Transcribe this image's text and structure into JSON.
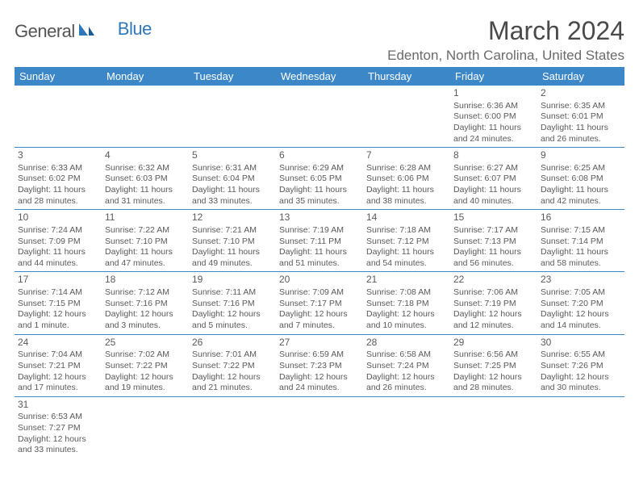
{
  "logo": {
    "gen": "General",
    "blue": "Blue"
  },
  "title": "March 2024",
  "location": "Edenton, North Carolina, United States",
  "day_headers": [
    "Sunday",
    "Monday",
    "Tuesday",
    "Wednesday",
    "Thursday",
    "Friday",
    "Saturday"
  ],
  "colors": {
    "header_bg": "#3b87c8",
    "header_fg": "#ffffff",
    "border": "#3b87c8",
    "logo_blue": "#2f77bb",
    "text": "#4a4a4a"
  },
  "weeks": [
    [
      null,
      null,
      null,
      null,
      null,
      {
        "n": "1",
        "sr": "Sunrise: 6:36 AM",
        "ss": "Sunset: 6:00 PM",
        "d1": "Daylight: 11 hours",
        "d2": "and 24 minutes."
      },
      {
        "n": "2",
        "sr": "Sunrise: 6:35 AM",
        "ss": "Sunset: 6:01 PM",
        "d1": "Daylight: 11 hours",
        "d2": "and 26 minutes."
      }
    ],
    [
      {
        "n": "3",
        "sr": "Sunrise: 6:33 AM",
        "ss": "Sunset: 6:02 PM",
        "d1": "Daylight: 11 hours",
        "d2": "and 28 minutes."
      },
      {
        "n": "4",
        "sr": "Sunrise: 6:32 AM",
        "ss": "Sunset: 6:03 PM",
        "d1": "Daylight: 11 hours",
        "d2": "and 31 minutes."
      },
      {
        "n": "5",
        "sr": "Sunrise: 6:31 AM",
        "ss": "Sunset: 6:04 PM",
        "d1": "Daylight: 11 hours",
        "d2": "and 33 minutes."
      },
      {
        "n": "6",
        "sr": "Sunrise: 6:29 AM",
        "ss": "Sunset: 6:05 PM",
        "d1": "Daylight: 11 hours",
        "d2": "and 35 minutes."
      },
      {
        "n": "7",
        "sr": "Sunrise: 6:28 AM",
        "ss": "Sunset: 6:06 PM",
        "d1": "Daylight: 11 hours",
        "d2": "and 38 minutes."
      },
      {
        "n": "8",
        "sr": "Sunrise: 6:27 AM",
        "ss": "Sunset: 6:07 PM",
        "d1": "Daylight: 11 hours",
        "d2": "and 40 minutes."
      },
      {
        "n": "9",
        "sr": "Sunrise: 6:25 AM",
        "ss": "Sunset: 6:08 PM",
        "d1": "Daylight: 11 hours",
        "d2": "and 42 minutes."
      }
    ],
    [
      {
        "n": "10",
        "sr": "Sunrise: 7:24 AM",
        "ss": "Sunset: 7:09 PM",
        "d1": "Daylight: 11 hours",
        "d2": "and 44 minutes."
      },
      {
        "n": "11",
        "sr": "Sunrise: 7:22 AM",
        "ss": "Sunset: 7:10 PM",
        "d1": "Daylight: 11 hours",
        "d2": "and 47 minutes."
      },
      {
        "n": "12",
        "sr": "Sunrise: 7:21 AM",
        "ss": "Sunset: 7:10 PM",
        "d1": "Daylight: 11 hours",
        "d2": "and 49 minutes."
      },
      {
        "n": "13",
        "sr": "Sunrise: 7:19 AM",
        "ss": "Sunset: 7:11 PM",
        "d1": "Daylight: 11 hours",
        "d2": "and 51 minutes."
      },
      {
        "n": "14",
        "sr": "Sunrise: 7:18 AM",
        "ss": "Sunset: 7:12 PM",
        "d1": "Daylight: 11 hours",
        "d2": "and 54 minutes."
      },
      {
        "n": "15",
        "sr": "Sunrise: 7:17 AM",
        "ss": "Sunset: 7:13 PM",
        "d1": "Daylight: 11 hours",
        "d2": "and 56 minutes."
      },
      {
        "n": "16",
        "sr": "Sunrise: 7:15 AM",
        "ss": "Sunset: 7:14 PM",
        "d1": "Daylight: 11 hours",
        "d2": "and 58 minutes."
      }
    ],
    [
      {
        "n": "17",
        "sr": "Sunrise: 7:14 AM",
        "ss": "Sunset: 7:15 PM",
        "d1": "Daylight: 12 hours",
        "d2": "and 1 minute."
      },
      {
        "n": "18",
        "sr": "Sunrise: 7:12 AM",
        "ss": "Sunset: 7:16 PM",
        "d1": "Daylight: 12 hours",
        "d2": "and 3 minutes."
      },
      {
        "n": "19",
        "sr": "Sunrise: 7:11 AM",
        "ss": "Sunset: 7:16 PM",
        "d1": "Daylight: 12 hours",
        "d2": "and 5 minutes."
      },
      {
        "n": "20",
        "sr": "Sunrise: 7:09 AM",
        "ss": "Sunset: 7:17 PM",
        "d1": "Daylight: 12 hours",
        "d2": "and 7 minutes."
      },
      {
        "n": "21",
        "sr": "Sunrise: 7:08 AM",
        "ss": "Sunset: 7:18 PM",
        "d1": "Daylight: 12 hours",
        "d2": "and 10 minutes."
      },
      {
        "n": "22",
        "sr": "Sunrise: 7:06 AM",
        "ss": "Sunset: 7:19 PM",
        "d1": "Daylight: 12 hours",
        "d2": "and 12 minutes."
      },
      {
        "n": "23",
        "sr": "Sunrise: 7:05 AM",
        "ss": "Sunset: 7:20 PM",
        "d1": "Daylight: 12 hours",
        "d2": "and 14 minutes."
      }
    ],
    [
      {
        "n": "24",
        "sr": "Sunrise: 7:04 AM",
        "ss": "Sunset: 7:21 PM",
        "d1": "Daylight: 12 hours",
        "d2": "and 17 minutes."
      },
      {
        "n": "25",
        "sr": "Sunrise: 7:02 AM",
        "ss": "Sunset: 7:22 PM",
        "d1": "Daylight: 12 hours",
        "d2": "and 19 minutes."
      },
      {
        "n": "26",
        "sr": "Sunrise: 7:01 AM",
        "ss": "Sunset: 7:22 PM",
        "d1": "Daylight: 12 hours",
        "d2": "and 21 minutes."
      },
      {
        "n": "27",
        "sr": "Sunrise: 6:59 AM",
        "ss": "Sunset: 7:23 PM",
        "d1": "Daylight: 12 hours",
        "d2": "and 24 minutes."
      },
      {
        "n": "28",
        "sr": "Sunrise: 6:58 AM",
        "ss": "Sunset: 7:24 PM",
        "d1": "Daylight: 12 hours",
        "d2": "and 26 minutes."
      },
      {
        "n": "29",
        "sr": "Sunrise: 6:56 AM",
        "ss": "Sunset: 7:25 PM",
        "d1": "Daylight: 12 hours",
        "d2": "and 28 minutes."
      },
      {
        "n": "30",
        "sr": "Sunrise: 6:55 AM",
        "ss": "Sunset: 7:26 PM",
        "d1": "Daylight: 12 hours",
        "d2": "and 30 minutes."
      }
    ],
    [
      {
        "n": "31",
        "sr": "Sunrise: 6:53 AM",
        "ss": "Sunset: 7:27 PM",
        "d1": "Daylight: 12 hours",
        "d2": "and 33 minutes."
      },
      null,
      null,
      null,
      null,
      null,
      null
    ]
  ]
}
